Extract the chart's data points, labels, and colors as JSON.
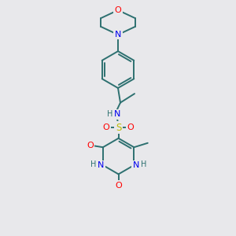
{
  "background_color": "#e8e8eb",
  "bond_color": "#2d7070",
  "atom_colors": {
    "O": "#ff0000",
    "N": "#0000ee",
    "S": "#bbbb00",
    "C": "#2d7070",
    "H": "#2d7070"
  },
  "figsize": [
    3.0,
    3.0
  ],
  "dpi": 100
}
